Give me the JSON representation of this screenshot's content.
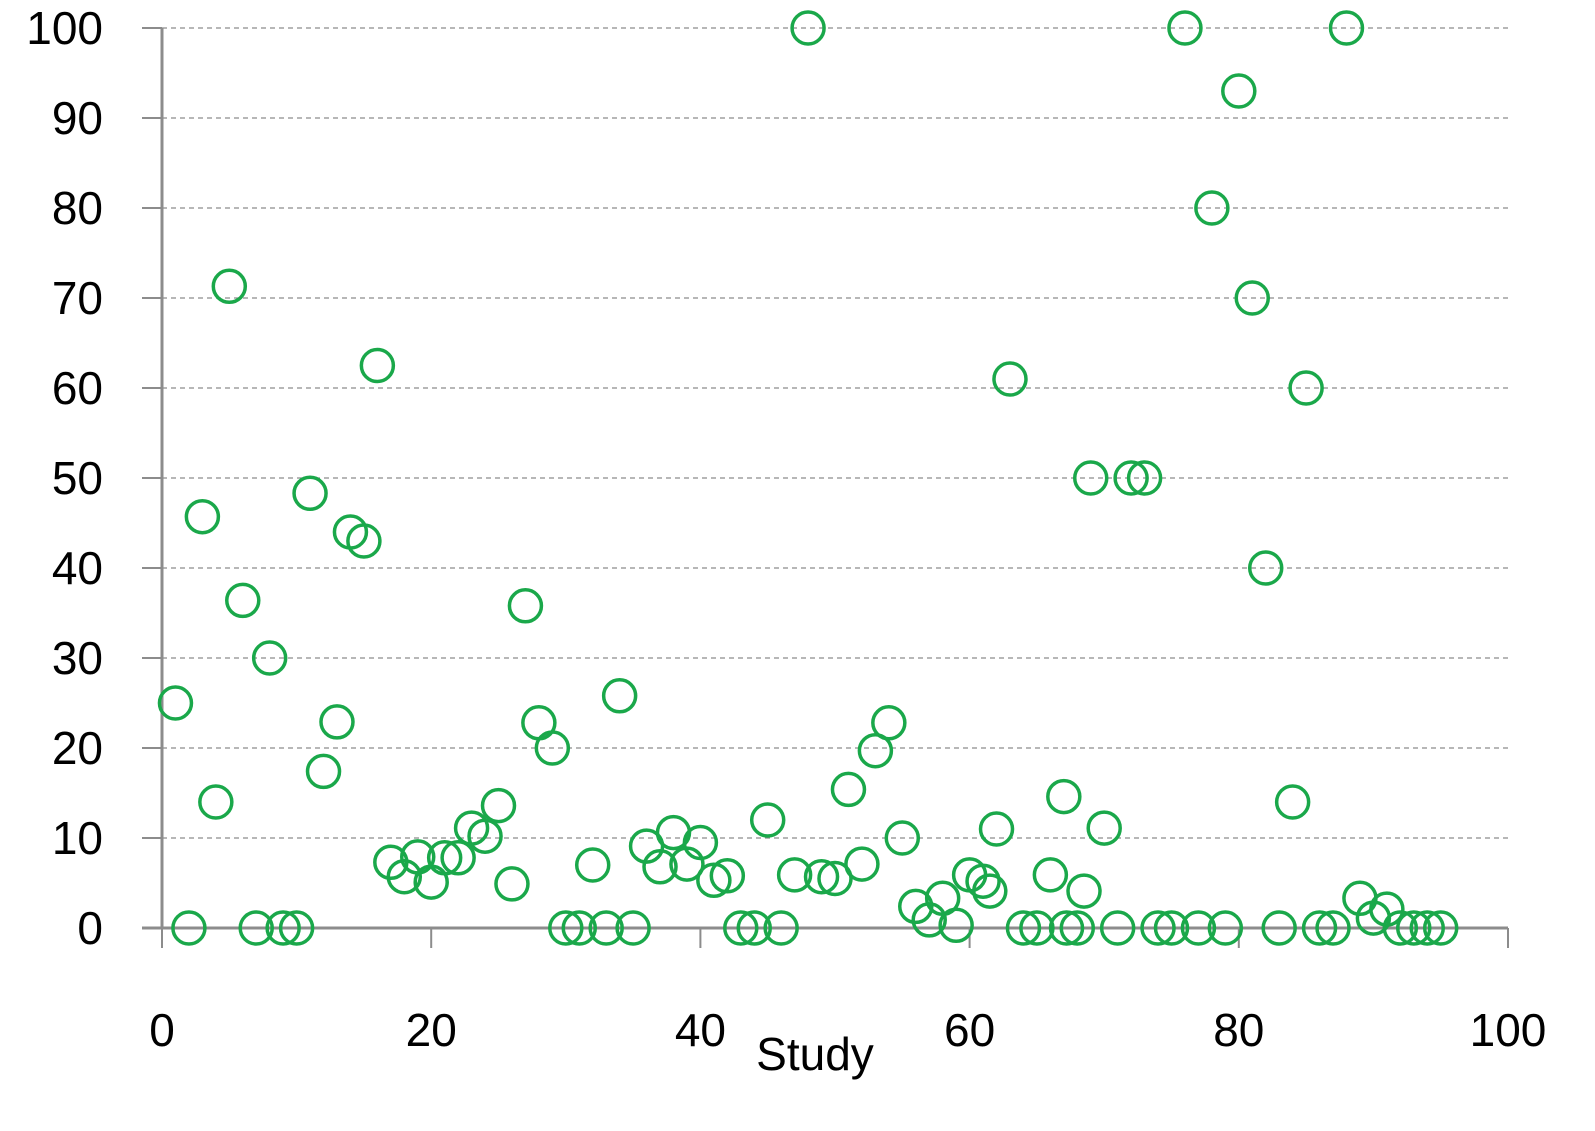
{
  "chart_data": {
    "type": "scatter",
    "title": "",
    "xlabel": "Study",
    "ylabel": "",
    "xlim": [
      0,
      100
    ],
    "ylim": [
      0,
      100
    ],
    "xticks": [
      0,
      20,
      40,
      60,
      80,
      100
    ],
    "yticks": [
      0,
      10,
      20,
      30,
      40,
      50,
      60,
      70,
      80,
      90,
      100
    ],
    "grid": "horizontal dashed",
    "marker": "open circle",
    "marker_color": "#1aa84a",
    "series": [
      {
        "points": [
          [
            1,
            25
          ],
          [
            2,
            0
          ],
          [
            3,
            45.7
          ],
          [
            4,
            14
          ],
          [
            5,
            71.3
          ],
          [
            6,
            36.4
          ],
          [
            7,
            0
          ],
          [
            8,
            30
          ],
          [
            9,
            0
          ],
          [
            10,
            0
          ],
          [
            11,
            48.3
          ],
          [
            12,
            17.4
          ],
          [
            13,
            22.9
          ],
          [
            14,
            44
          ],
          [
            15,
            43
          ],
          [
            16,
            62.5
          ],
          [
            17,
            7.3
          ],
          [
            18,
            5.7
          ],
          [
            19,
            7.9
          ],
          [
            20,
            5.1
          ],
          [
            21,
            7.8
          ],
          [
            22,
            7.8
          ],
          [
            23,
            11.1
          ],
          [
            24,
            10.2
          ],
          [
            25,
            13.6
          ],
          [
            26,
            4.9
          ],
          [
            27,
            35.8
          ],
          [
            28,
            22.8
          ],
          [
            29,
            20
          ],
          [
            30,
            0
          ],
          [
            31,
            0
          ],
          [
            32,
            7
          ],
          [
            33,
            0
          ],
          [
            34,
            25.8
          ],
          [
            35,
            0
          ],
          [
            36,
            9.1
          ],
          [
            37,
            6.8
          ],
          [
            38,
            10.6
          ],
          [
            39,
            7.1
          ],
          [
            40,
            9.5
          ],
          [
            41,
            5.3
          ],
          [
            42,
            5.8
          ],
          [
            43,
            0
          ],
          [
            44,
            0
          ],
          [
            45,
            12
          ],
          [
            46,
            0
          ],
          [
            47,
            5.9
          ],
          [
            48,
            100
          ],
          [
            49,
            5.7
          ],
          [
            50,
            5.5
          ],
          [
            51,
            15.4
          ],
          [
            52,
            7.1
          ],
          [
            53,
            19.7
          ],
          [
            54,
            22.8
          ],
          [
            55,
            10
          ],
          [
            56,
            2.4
          ],
          [
            57,
            0.9
          ],
          [
            58,
            3.3
          ],
          [
            59,
            0.3
          ],
          [
            60,
            5.9
          ],
          [
            61,
            5.2
          ],
          [
            61.5,
            4.1
          ],
          [
            62,
            11
          ],
          [
            63,
            61
          ],
          [
            64,
            0
          ],
          [
            65,
            0
          ],
          [
            66,
            5.9
          ],
          [
            67,
            14.6
          ],
          [
            67.2,
            0
          ],
          [
            68,
            0
          ],
          [
            68.5,
            4.1
          ],
          [
            69,
            50
          ],
          [
            70,
            11.1
          ],
          [
            71,
            0
          ],
          [
            72,
            50
          ],
          [
            73,
            50
          ],
          [
            74,
            0
          ],
          [
            75,
            0
          ],
          [
            76,
            100
          ],
          [
            77,
            0
          ],
          [
            78,
            80
          ],
          [
            79,
            0
          ],
          [
            80,
            93
          ],
          [
            81,
            70
          ],
          [
            82,
            40
          ],
          [
            83,
            0
          ],
          [
            84,
            14
          ],
          [
            85,
            60
          ],
          [
            86,
            0
          ],
          [
            87,
            0
          ],
          [
            88,
            100
          ],
          [
            89,
            3.3
          ],
          [
            90,
            1.1
          ],
          [
            91,
            2.1
          ],
          [
            92,
            0
          ],
          [
            93,
            0
          ],
          [
            94,
            0
          ],
          [
            95,
            0
          ]
        ]
      }
    ]
  }
}
